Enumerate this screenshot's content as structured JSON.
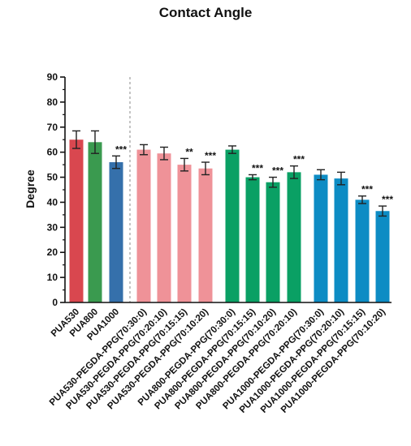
{
  "chart_data": {
    "type": "bar",
    "title": "Contact Angle",
    "ylabel": "Degree",
    "xlabel": "",
    "ylim": [
      0,
      90
    ],
    "yticks": [
      0,
      10,
      20,
      30,
      40,
      50,
      60,
      70,
      80,
      90
    ],
    "grid": false,
    "categories": [
      "PUA530",
      "PUA800",
      "PUA1000",
      "PUA530-PEGDA-PPG(70:30:0)",
      "PUA530-PEGDA-PPG(70:20:10)",
      "PUA530-PEGDA-PPG(70:15:15)",
      "PUA530-PEGDA-PPG(70:10:20)",
      "PUA800-PEGDA-PPG(70:30:0)",
      "PUA800-PEGDA-PPG(70:15:15)",
      "PUA800-PEGDA-PPG(70:10:20)",
      "PUA800-PEGDA-PPG(70:20:10)",
      "PUA1000-PEGDA-PPG(70:30:0)",
      "PUA1000-PEGDA-PPG(70:20:10)",
      "PUA1000-PEGDA-PPG(70:15:15)",
      "PUA1000-PEGDA-PPG(70:10:20)"
    ],
    "values": [
      65,
      64,
      56,
      61,
      59.5,
      55,
      53.5,
      61,
      50,
      48,
      52,
      51,
      49.5,
      41,
      36.5
    ],
    "errors": [
      3.5,
      4.5,
      2.5,
      2,
      2.5,
      2.5,
      2.5,
      1.5,
      1,
      2,
      2.5,
      2,
      2.5,
      1.5,
      2
    ],
    "colors": [
      "#d9474f",
      "#3a9a4f",
      "#3570ab",
      "#ef9298",
      "#ef9298",
      "#ef9298",
      "#ef9298",
      "#0aa064",
      "#0aa064",
      "#0aa064",
      "#0aa064",
      "#0d8cc4",
      "#0d8cc4",
      "#0d8cc4",
      "#0d8cc4"
    ],
    "significance": [
      "",
      "",
      "***",
      "",
      "",
      "**",
      "***",
      "",
      "***",
      "***",
      "***",
      "",
      "",
      "***",
      "***"
    ],
    "divider_after_index": 2
  }
}
